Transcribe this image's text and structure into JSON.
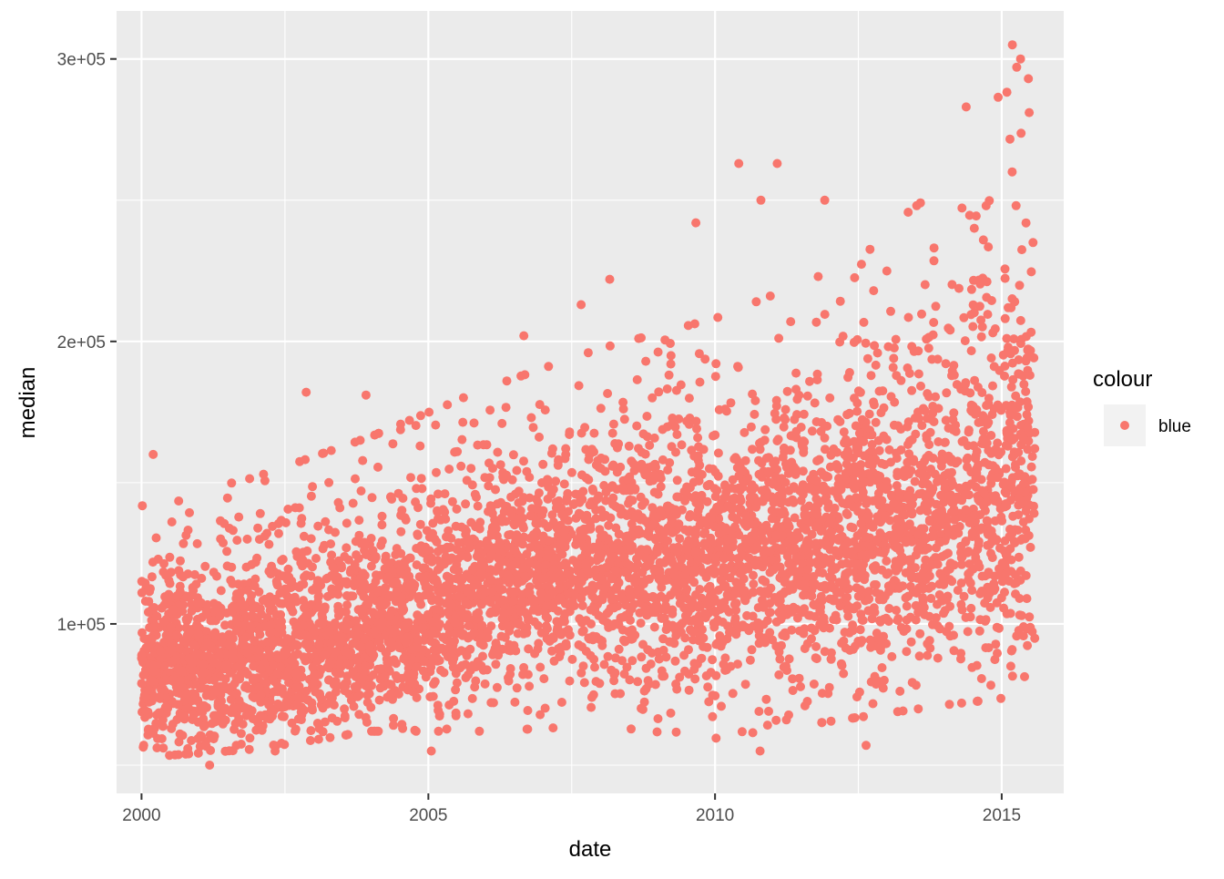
{
  "chart_data": {
    "type": "scatter",
    "title": "",
    "xlabel": "date",
    "ylabel": "median",
    "xlim": [
      "1999-07-26",
      "2016-01-31"
    ],
    "ylim": [
      40000,
      317000
    ],
    "x_ticks": [
      {
        "value": "2000-01-01",
        "label": "2000"
      },
      {
        "value": "2005-01-01",
        "label": "2005"
      },
      {
        "value": "2010-01-01",
        "label": "2010"
      },
      {
        "value": "2015-01-01",
        "label": "2015"
      }
    ],
    "y_ticks": [
      {
        "value": 100000,
        "label": "1e+05"
      },
      {
        "value": 200000,
        "label": "2e+05"
      },
      {
        "value": 300000,
        "label": "3e+05"
      }
    ],
    "y_minor_ticks": [
      50000,
      150000,
      250000
    ],
    "grid": true,
    "panel_background": "#ebebeb",
    "grid_color": "#ffffff",
    "point_color": "#f8766d",
    "legend": {
      "title": "colour",
      "position": "right",
      "entries": [
        {
          "label": "blue",
          "color": "#f8766d"
        }
      ]
    },
    "date_range": [
      "2000-01-01",
      "2015-07-31"
    ],
    "trend": [
      {
        "date": "2000-01-01",
        "center": 84000,
        "spread_low": 25000,
        "spread_high": 55000
      },
      {
        "date": "2002-01-01",
        "center": 87000,
        "spread_low": 25000,
        "spread_high": 62000
      },
      {
        "date": "2004-01-01",
        "center": 97000,
        "spread_low": 28000,
        "spread_high": 66000
      },
      {
        "date": "2006-01-01",
        "center": 112000,
        "spread_low": 40000,
        "spread_high": 68000
      },
      {
        "date": "2008-01-01",
        "center": 124000,
        "spread_low": 48000,
        "spread_high": 70000
      },
      {
        "date": "2010-01-01",
        "center": 122000,
        "spread_low": 50000,
        "spread_high": 82000
      },
      {
        "date": "2012-01-01",
        "center": 128000,
        "spread_low": 50000,
        "spread_high": 92000
      },
      {
        "date": "2014-01-01",
        "center": 140000,
        "spread_low": 55000,
        "spread_high": 110000
      },
      {
        "date": "2015-07-31",
        "center": 150000,
        "spread_low": 60000,
        "spread_high": 150000
      }
    ],
    "notable_points": [
      {
        "date": "2000-03-15",
        "value": 160000
      },
      {
        "date": "2001-03-10",
        "value": 50000
      },
      {
        "date": "2002-05-01",
        "value": 55000
      },
      {
        "date": "2002-11-15",
        "value": 182000
      },
      {
        "date": "2003-12-01",
        "value": 181000
      },
      {
        "date": "2005-01-20",
        "value": 55000
      },
      {
        "date": "2006-09-01",
        "value": 202000
      },
      {
        "date": "2007-09-01",
        "value": 213000
      },
      {
        "date": "2008-03-01",
        "value": 222000
      },
      {
        "date": "2009-09-01",
        "value": 242000
      },
      {
        "date": "2010-06-01",
        "value": 263000
      },
      {
        "date": "2010-10-20",
        "value": 250000
      },
      {
        "date": "2010-10-15",
        "value": 55000
      },
      {
        "date": "2011-02-01",
        "value": 263000
      },
      {
        "date": "2011-12-01",
        "value": 250000
      },
      {
        "date": "2012-08-20",
        "value": 57000
      },
      {
        "date": "2014-05-20",
        "value": 283000
      },
      {
        "date": "2015-03-10",
        "value": 305000
      },
      {
        "date": "2015-05-01",
        "value": 300000
      },
      {
        "date": "2015-06-20",
        "value": 293000
      },
      {
        "date": "2015-06-25",
        "value": 281000
      }
    ],
    "point_count": 5500
  }
}
